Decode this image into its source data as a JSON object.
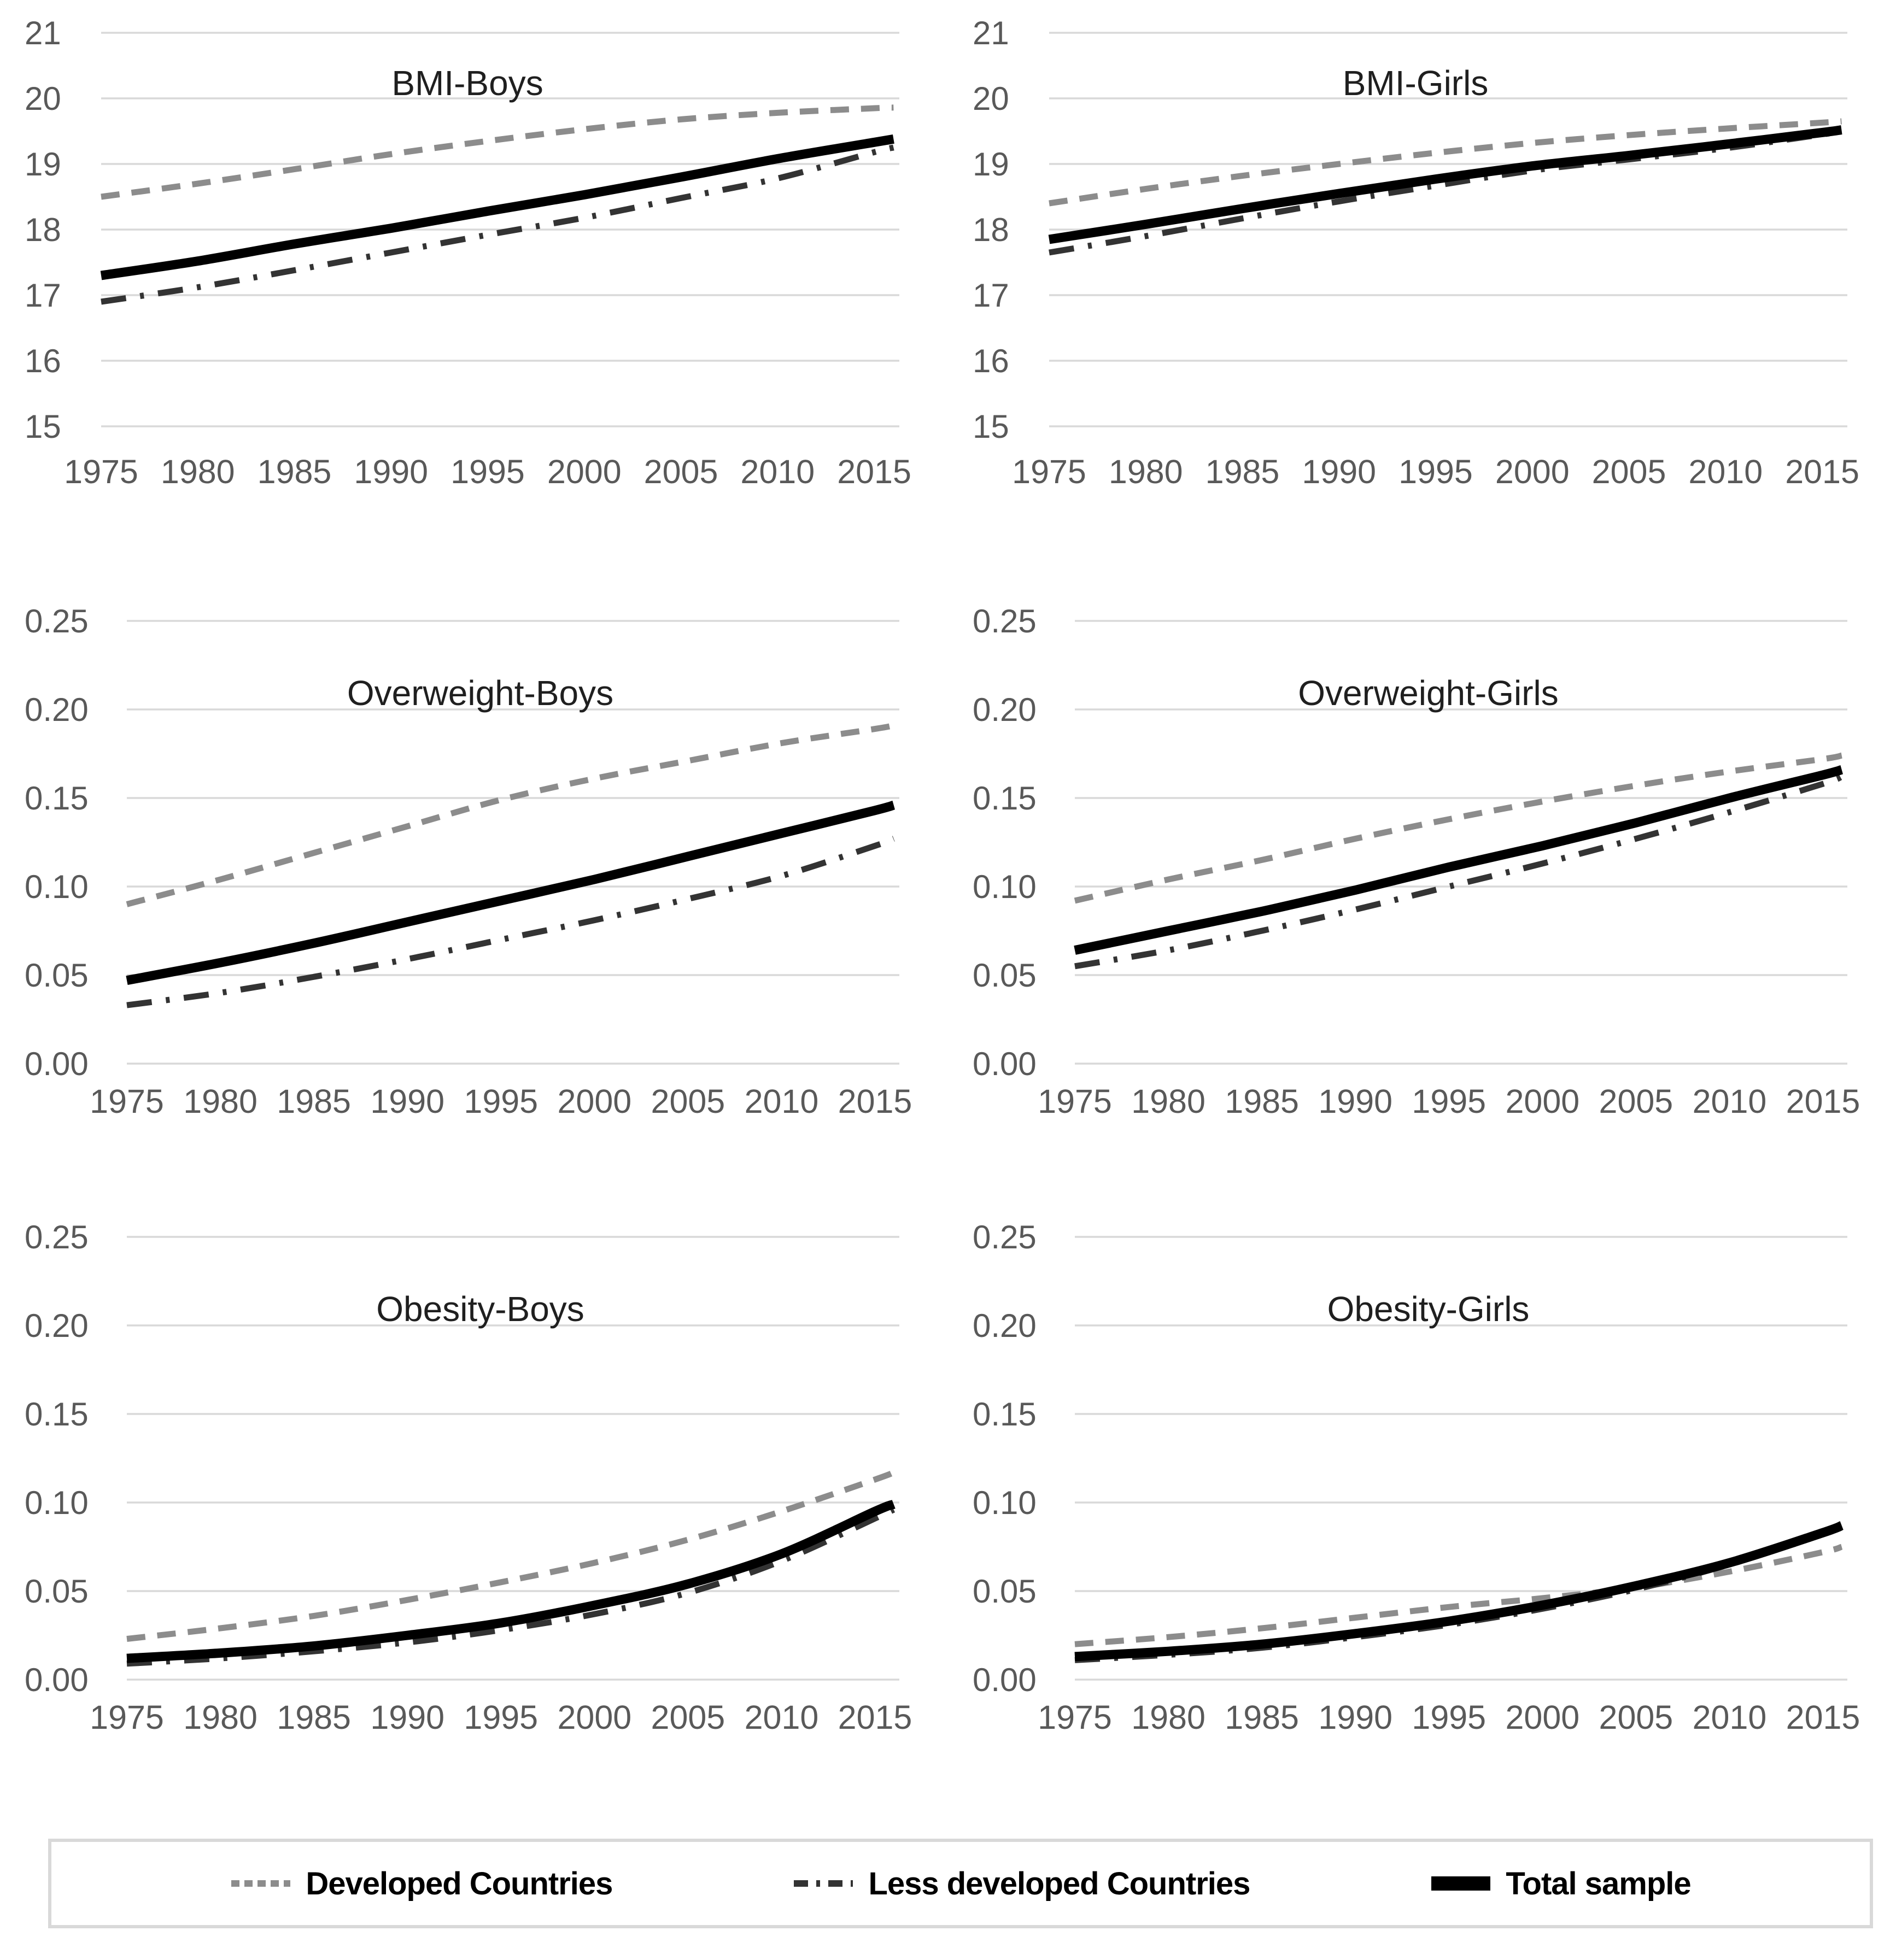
{
  "figure": {
    "colors": {
      "grid": "#d9d9d9",
      "tick_label": "#595959",
      "title": "#1f1f1f",
      "legend_border": "#d9d9d9",
      "developed": "#8c8c8c",
      "less_developed": "#333333",
      "total": "#000000"
    },
    "legend": {
      "items": [
        {
          "label": "Developed Countries",
          "style": "dashed",
          "color": "#8c8c8c",
          "stroke_width": 11
        },
        {
          "label": "Less developed Countries",
          "style": "dashdot",
          "color": "#333333",
          "stroke_width": 11
        },
        {
          "label": "Total sample",
          "style": "solid",
          "color": "#000000",
          "stroke_width": 17
        }
      ]
    }
  },
  "chart_data": [
    {
      "type": "line",
      "title": "BMI-Boys",
      "xlabel": "",
      "ylabel": "",
      "x": [
        1975,
        1980,
        1985,
        1990,
        1995,
        2000,
        2005,
        2010,
        2015,
        2016
      ],
      "xticks": [
        1975,
        1980,
        1985,
        1990,
        1995,
        2000,
        2005,
        2010,
        2015
      ],
      "xlim": [
        1975,
        2016.3
      ],
      "ylim": [
        15,
        21
      ],
      "yticks": [
        21,
        20,
        19,
        18,
        17,
        16,
        15
      ],
      "ytick_format": "int",
      "grid": true,
      "legend_position": "bottom-shared",
      "series": [
        {
          "name": "Developed Countries",
          "values": [
            18.5,
            18.7,
            18.92,
            19.15,
            19.35,
            19.53,
            19.68,
            19.78,
            19.85,
            19.86
          ]
        },
        {
          "name": "Less developed Countries",
          "values": [
            16.9,
            17.12,
            17.38,
            17.65,
            17.92,
            18.18,
            18.48,
            18.78,
            19.18,
            19.25
          ]
        },
        {
          "name": "Total sample",
          "values": [
            17.3,
            17.52,
            17.78,
            18.02,
            18.28,
            18.53,
            18.8,
            19.08,
            19.33,
            19.38
          ]
        }
      ]
    },
    {
      "type": "line",
      "title": "BMI-Girls",
      "xlabel": "",
      "ylabel": "",
      "x": [
        1975,
        1980,
        1985,
        1990,
        1995,
        2000,
        2005,
        2010,
        2015,
        2016
      ],
      "xticks": [
        1975,
        1980,
        1985,
        1990,
        1995,
        2000,
        2005,
        2010,
        2015
      ],
      "xlim": [
        1975,
        2016.3
      ],
      "ylim": [
        15,
        21
      ],
      "yticks": [
        21,
        20,
        19,
        18,
        17,
        16,
        15
      ],
      "ytick_format": "int",
      "grid": true,
      "legend_position": "bottom-shared",
      "series": [
        {
          "name": "Developed Countries",
          "values": [
            18.4,
            18.62,
            18.82,
            19.0,
            19.17,
            19.32,
            19.44,
            19.54,
            19.63,
            19.65
          ]
        },
        {
          "name": "Less developed Countries",
          "values": [
            17.65,
            17.9,
            18.17,
            18.43,
            18.67,
            18.9,
            19.07,
            19.24,
            19.45,
            19.5
          ]
        },
        {
          "name": "Total sample",
          "values": [
            17.85,
            18.08,
            18.32,
            18.55,
            18.77,
            18.97,
            19.13,
            19.3,
            19.48,
            19.52
          ]
        }
      ]
    },
    {
      "type": "line",
      "title": "Overweight-Boys",
      "xlabel": "",
      "ylabel": "",
      "x": [
        1975,
        1980,
        1985,
        1990,
        1995,
        2000,
        2005,
        2010,
        2015,
        2016
      ],
      "xticks": [
        1975,
        1980,
        1985,
        1990,
        1995,
        2000,
        2005,
        2010,
        2015
      ],
      "xlim": [
        1975,
        2016.3
      ],
      "ylim": [
        0,
        0.25
      ],
      "yticks": [
        0.25,
        0.2,
        0.15,
        0.1,
        0.05,
        0.0
      ],
      "ytick_format": "2dp",
      "grid": true,
      "legend_position": "bottom-shared",
      "series": [
        {
          "name": "Developed Countries",
          "values": [
            0.09,
            0.104,
            0.119,
            0.134,
            0.149,
            0.161,
            0.171,
            0.181,
            0.189,
            0.191
          ]
        },
        {
          "name": "Less developed Countries",
          "values": [
            0.033,
            0.04,
            0.049,
            0.059,
            0.07,
            0.081,
            0.093,
            0.106,
            0.123,
            0.127
          ]
        },
        {
          "name": "Total sample",
          "values": [
            0.047,
            0.057,
            0.068,
            0.08,
            0.092,
            0.104,
            0.117,
            0.13,
            0.143,
            0.146
          ]
        }
      ]
    },
    {
      "type": "line",
      "title": "Overweight-Girls",
      "xlabel": "",
      "ylabel": "",
      "x": [
        1975,
        1980,
        1985,
        1990,
        1995,
        2000,
        2005,
        2010,
        2015,
        2016
      ],
      "xticks": [
        1975,
        1980,
        1985,
        1990,
        1995,
        2000,
        2005,
        2010,
        2015
      ],
      "xlim": [
        1975,
        2016.3
      ],
      "ylim": [
        0,
        0.25
      ],
      "yticks": [
        0.25,
        0.2,
        0.15,
        0.1,
        0.05,
        0.0
      ],
      "ytick_format": "2dp",
      "grid": true,
      "legend_position": "bottom-shared",
      "series": [
        {
          "name": "Developed Countries",
          "values": [
            0.092,
            0.104,
            0.115,
            0.127,
            0.138,
            0.148,
            0.157,
            0.165,
            0.172,
            0.174
          ]
        },
        {
          "name": "Less developed Countries",
          "values": [
            0.055,
            0.064,
            0.075,
            0.087,
            0.1,
            0.113,
            0.127,
            0.142,
            0.158,
            0.162
          ]
        },
        {
          "name": "Total sample",
          "values": [
            0.064,
            0.075,
            0.086,
            0.098,
            0.111,
            0.123,
            0.136,
            0.15,
            0.163,
            0.166
          ]
        }
      ]
    },
    {
      "type": "line",
      "title": "Obesity-Boys",
      "xlabel": "",
      "ylabel": "",
      "x": [
        1975,
        1980,
        1985,
        1990,
        1995,
        2000,
        2005,
        2010,
        2015,
        2016
      ],
      "xticks": [
        1975,
        1980,
        1985,
        1990,
        1995,
        2000,
        2005,
        2010,
        2015
      ],
      "xlim": [
        1975,
        2016.3
      ],
      "ylim": [
        0,
        0.25
      ],
      "yticks": [
        0.25,
        0.2,
        0.15,
        0.1,
        0.05,
        0.0
      ],
      "ytick_format": "2dp",
      "grid": true,
      "legend_position": "bottom-shared",
      "series": [
        {
          "name": "Developed Countries",
          "values": [
            0.023,
            0.029,
            0.036,
            0.045,
            0.055,
            0.066,
            0.079,
            0.095,
            0.113,
            0.117
          ]
        },
        {
          "name": "Less developed Countries",
          "values": [
            0.009,
            0.012,
            0.016,
            0.021,
            0.028,
            0.037,
            0.049,
            0.067,
            0.091,
            0.096
          ]
        },
        {
          "name": "Total sample",
          "values": [
            0.012,
            0.015,
            0.019,
            0.025,
            0.032,
            0.042,
            0.054,
            0.071,
            0.095,
            0.099
          ]
        }
      ]
    },
    {
      "type": "line",
      "title": "Obesity-Girls",
      "xlabel": "",
      "ylabel": "",
      "x": [
        1975,
        1980,
        1985,
        1990,
        1995,
        2000,
        2005,
        2010,
        2015,
        2016
      ],
      "xticks": [
        1975,
        1980,
        1985,
        1990,
        1995,
        2000,
        2005,
        2010,
        2015
      ],
      "xlim": [
        1975,
        2016.3
      ],
      "ylim": [
        0,
        0.25
      ],
      "yticks": [
        0.25,
        0.2,
        0.15,
        0.1,
        0.05,
        0.0
      ],
      "ytick_format": "2dp",
      "grid": true,
      "legend_position": "bottom-shared",
      "series": [
        {
          "name": "Developed Countries",
          "values": [
            0.02,
            0.024,
            0.029,
            0.035,
            0.041,
            0.046,
            0.052,
            0.061,
            0.072,
            0.075
          ]
        },
        {
          "name": "Less developed Countries",
          "values": [
            0.011,
            0.014,
            0.018,
            0.024,
            0.031,
            0.04,
            0.051,
            0.065,
            0.082,
            0.086
          ]
        },
        {
          "name": "Total sample",
          "values": [
            0.013,
            0.016,
            0.02,
            0.026,
            0.033,
            0.042,
            0.053,
            0.066,
            0.083,
            0.087
          ]
        }
      ]
    }
  ]
}
